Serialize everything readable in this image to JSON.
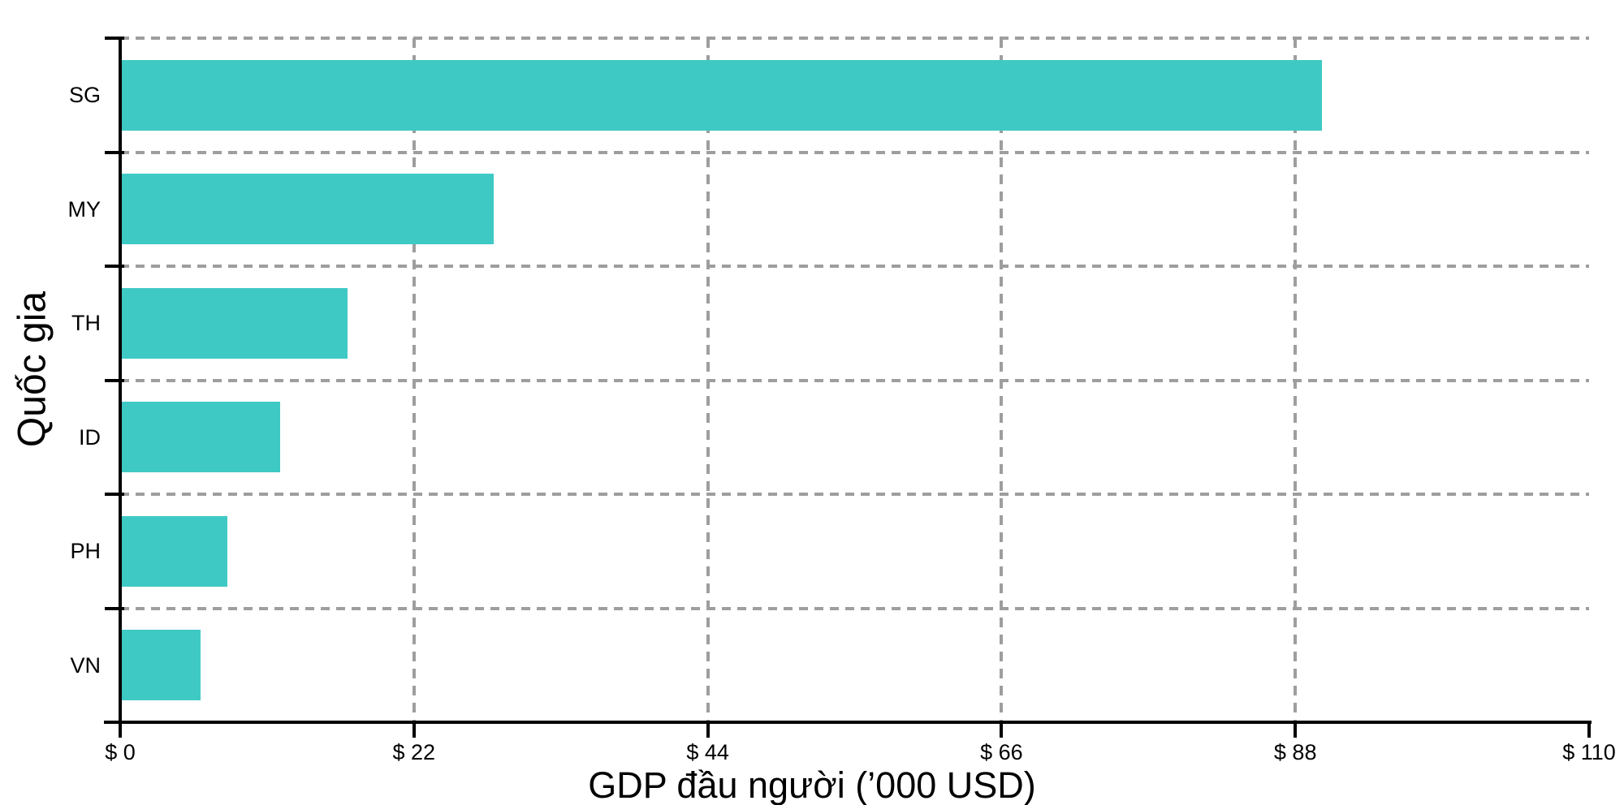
{
  "chart_data": {
    "type": "bar",
    "orientation": "horizontal",
    "title": "",
    "xlabel": "GDP đầu người (’000 USD)",
    "ylabel": "Quốc gia",
    "categories": [
      "SG",
      "MY",
      "TH",
      "ID",
      "PH",
      "VN"
    ],
    "values": [
      90,
      28,
      17,
      12,
      8,
      6
    ],
    "x_ticks": [
      0,
      22,
      44,
      66,
      88,
      110
    ],
    "x_tick_labels": [
      "$ 0",
      "$ 22",
      "$ 44",
      "$ 66",
      "$ 88",
      "$ 110"
    ],
    "xlim": [
      0,
      110
    ],
    "grid": "dashed, horizontal at category boundaries and vertical at interior ticks",
    "legend": "none",
    "colors": {
      "bar": "#3FC9C5",
      "grid": "#9E9E9E",
      "axis": "#000000",
      "text": "#000000",
      "background": "#FFFFFF"
    }
  }
}
